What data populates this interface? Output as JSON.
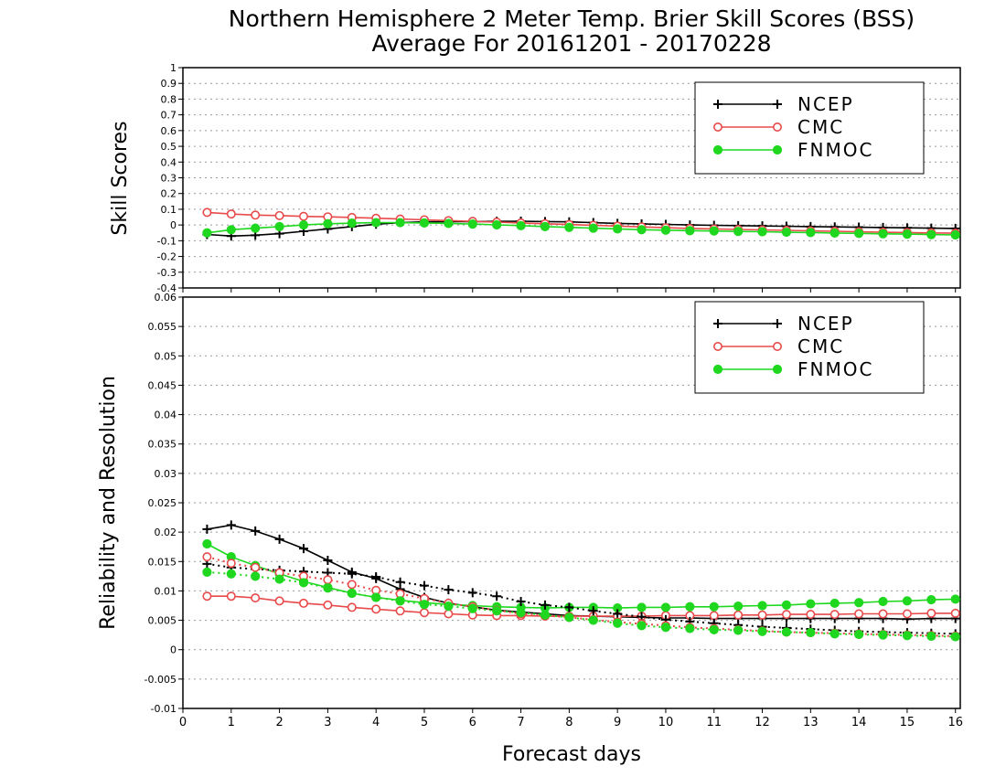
{
  "title_line1": "Northern Hemisphere 2 Meter Temp. Brier Skill Scores (BSS)",
  "title_line2": "Average For 20161201 - 20170228",
  "xlabel": "Forecast days",
  "colors": {
    "NCEP": "#000000",
    "CMC": "#e84a4a",
    "FNMOC": "#1ed71e"
  },
  "chart_data": [
    {
      "type": "line",
      "ylabel": "Skill Scores",
      "xlim": [
        0,
        16.1
      ],
      "ylim": [
        -0.4,
        1
      ],
      "yticks": [
        "1",
        "0.9",
        "0.8",
        "0.7",
        "0.6",
        "0.5",
        "0.4",
        "0.3",
        "0.2",
        "0.1",
        "0",
        "-0.1",
        "-0.2",
        "-0.3",
        "-0.4"
      ],
      "xticks": [
        "0",
        "1",
        "2",
        "3",
        "4",
        "5",
        "6",
        "7",
        "8",
        "9",
        "10",
        "11",
        "12",
        "13",
        "14",
        "15",
        "16"
      ],
      "grid": true,
      "legend": {
        "position": "top-right",
        "entries": [
          "NCEP",
          "CMC",
          "FNMOC"
        ]
      },
      "x": [
        0.5,
        1,
        1.5,
        2,
        2.5,
        3,
        3.5,
        4,
        4.5,
        5,
        5.5,
        6,
        6.5,
        7,
        7.5,
        8,
        8.5,
        9,
        9.5,
        10,
        10.5,
        11,
        11.5,
        12,
        12.5,
        13,
        13.5,
        14,
        14.5,
        15,
        15.5,
        16
      ],
      "series": [
        {
          "name": "NCEP",
          "style": "solid",
          "marker": "plus",
          "values": [
            -0.06,
            -0.07,
            -0.065,
            -0.055,
            -0.04,
            -0.025,
            -0.01,
            0.005,
            0.015,
            0.02,
            0.022,
            0.022,
            0.023,
            0.024,
            0.022,
            0.02,
            0.015,
            0.01,
            0.007,
            0.004,
            0,
            -0.002,
            -0.004,
            -0.006,
            -0.008,
            -0.01,
            -0.012,
            -0.014,
            -0.016,
            -0.018,
            -0.02,
            -0.022
          ]
        },
        {
          "name": "CMC",
          "style": "solid",
          "marker": "open-circle",
          "values": [
            0.08,
            0.07,
            0.063,
            0.06,
            0.055,
            0.052,
            0.048,
            0.043,
            0.038,
            0.033,
            0.028,
            0.023,
            0.018,
            0.013,
            0.008,
            0.003,
            -0.002,
            -0.007,
            -0.012,
            -0.017,
            -0.022,
            -0.025,
            -0.028,
            -0.031,
            -0.034,
            -0.037,
            -0.04,
            -0.043,
            -0.046,
            -0.048,
            -0.05,
            -0.052
          ]
        },
        {
          "name": "FNMOC",
          "style": "solid",
          "marker": "filled-circle",
          "values": [
            -0.05,
            -0.03,
            -0.02,
            -0.01,
            0,
            0.008,
            0.012,
            0.015,
            0.015,
            0.013,
            0.01,
            0.006,
            0.001,
            -0.004,
            -0.01,
            -0.015,
            -0.02,
            -0.025,
            -0.03,
            -0.033,
            -0.036,
            -0.038,
            -0.041,
            -0.043,
            -0.046,
            -0.048,
            -0.051,
            -0.053,
            -0.056,
            -0.058,
            -0.061,
            -0.063
          ]
        }
      ]
    },
    {
      "type": "line",
      "ylabel": "Reliability and Resolution",
      "xlim": [
        0,
        16.1
      ],
      "ylim": [
        -0.01,
        0.06
      ],
      "yticks": [
        "0.06",
        "0.055",
        "0.05",
        "0.045",
        "0.04",
        "0.035",
        "0.03",
        "0.025",
        "0.02",
        "0.015",
        "0.01",
        "0.005",
        "0",
        "-0.005",
        "-0.01"
      ],
      "xticks": [
        "0",
        "1",
        "2",
        "3",
        "4",
        "5",
        "6",
        "7",
        "8",
        "9",
        "10",
        "11",
        "12",
        "13",
        "14",
        "15",
        "16"
      ],
      "grid": true,
      "legend": {
        "position": "top-right",
        "entries": [
          "NCEP",
          "CMC",
          "FNMOC"
        ]
      },
      "x": [
        0.5,
        1,
        1.5,
        2,
        2.5,
        3,
        3.5,
        4,
        4.5,
        5,
        5.5,
        6,
        6.5,
        7,
        7.5,
        8,
        8.5,
        9,
        9.5,
        10,
        10.5,
        11,
        11.5,
        12,
        12.5,
        13,
        13.5,
        14,
        14.5,
        15,
        15.5,
        16
      ],
      "series": [
        {
          "name": "NCEP",
          "style": "solid",
          "marker": "plus",
          "values": [
            0.0205,
            0.0212,
            0.0202,
            0.0188,
            0.0172,
            0.0152,
            0.0132,
            0.0121,
            0.0103,
            0.0089,
            0.0079,
            0.0073,
            0.0067,
            0.0064,
            0.0061,
            0.0058,
            0.0057,
            0.0056,
            0.0055,
            0.0054,
            0.0054,
            0.0053,
            0.0053,
            0.0053,
            0.0053,
            0.0053,
            0.0053,
            0.0053,
            0.0053,
            0.0052,
            0.0053,
            0.0053
          ]
        },
        {
          "name": "CMC",
          "style": "solid",
          "marker": "open-circle",
          "values": [
            0.0091,
            0.0091,
            0.0088,
            0.0083,
            0.0079,
            0.0076,
            0.0072,
            0.0069,
            0.0066,
            0.0063,
            0.0061,
            0.0059,
            0.0058,
            0.0058,
            0.0057,
            0.0057,
            0.0057,
            0.0057,
            0.0057,
            0.0058,
            0.0058,
            0.0058,
            0.0059,
            0.0059,
            0.006,
            0.006,
            0.006,
            0.0061,
            0.0061,
            0.0061,
            0.0062,
            0.0062
          ]
        },
        {
          "name": "FNMOC",
          "style": "solid",
          "marker": "filled-circle",
          "values": [
            0.018,
            0.0158,
            0.0143,
            0.0129,
            0.0116,
            0.0106,
            0.0096,
            0.0089,
            0.0084,
            0.008,
            0.0077,
            0.0075,
            0.0073,
            0.0072,
            0.0071,
            0.0072,
            0.0072,
            0.0071,
            0.0072,
            0.0072,
            0.0073,
            0.0073,
            0.0074,
            0.0075,
            0.0076,
            0.0078,
            0.0079,
            0.008,
            0.0082,
            0.0083,
            0.0085,
            0.0086
          ]
        },
        {
          "name": "",
          "style": "dotted",
          "marker": "plus",
          "colorKey": "NCEP",
          "values": [
            0.0146,
            0.014,
            0.0137,
            0.0135,
            0.0133,
            0.0131,
            0.0129,
            0.0124,
            0.0115,
            0.0109,
            0.0102,
            0.0097,
            0.0091,
            0.0082,
            0.0076,
            0.0072,
            0.0066,
            0.0061,
            0.0056,
            0.0051,
            0.0048,
            0.0045,
            0.0042,
            0.0039,
            0.0037,
            0.0035,
            0.0033,
            0.0031,
            0.003,
            0.0029,
            0.0028,
            0.0027
          ]
        },
        {
          "name": "",
          "style": "dotted",
          "marker": "open-circle",
          "colorKey": "CMC",
          "values": [
            0.0158,
            0.0147,
            0.014,
            0.0131,
            0.0125,
            0.0119,
            0.0111,
            0.0101,
            0.0095,
            0.0087,
            0.0079,
            0.0073,
            0.0067,
            0.0061,
            0.0058,
            0.0055,
            0.0051,
            0.0047,
            0.0044,
            0.0041,
            0.0038,
            0.0036,
            0.0034,
            0.0032,
            0.003,
            0.0029,
            0.0028,
            0.0027,
            0.0026,
            0.0025,
            0.0024,
            0.0023
          ]
        },
        {
          "name": "",
          "style": "dotted",
          "marker": "filled-circle",
          "colorKey": "FNMOC",
          "values": [
            0.0132,
            0.0129,
            0.0125,
            0.012,
            0.0114,
            0.0105,
            0.0096,
            0.0089,
            0.0083,
            0.0077,
            0.0074,
            0.007,
            0.0066,
            0.0063,
            0.0059,
            0.0055,
            0.005,
            0.0045,
            0.0041,
            0.0038,
            0.0036,
            0.0034,
            0.0033,
            0.0031,
            0.003,
            0.0029,
            0.0027,
            0.0026,
            0.0025,
            0.0024,
            0.0023,
            0.0022
          ]
        }
      ]
    }
  ]
}
